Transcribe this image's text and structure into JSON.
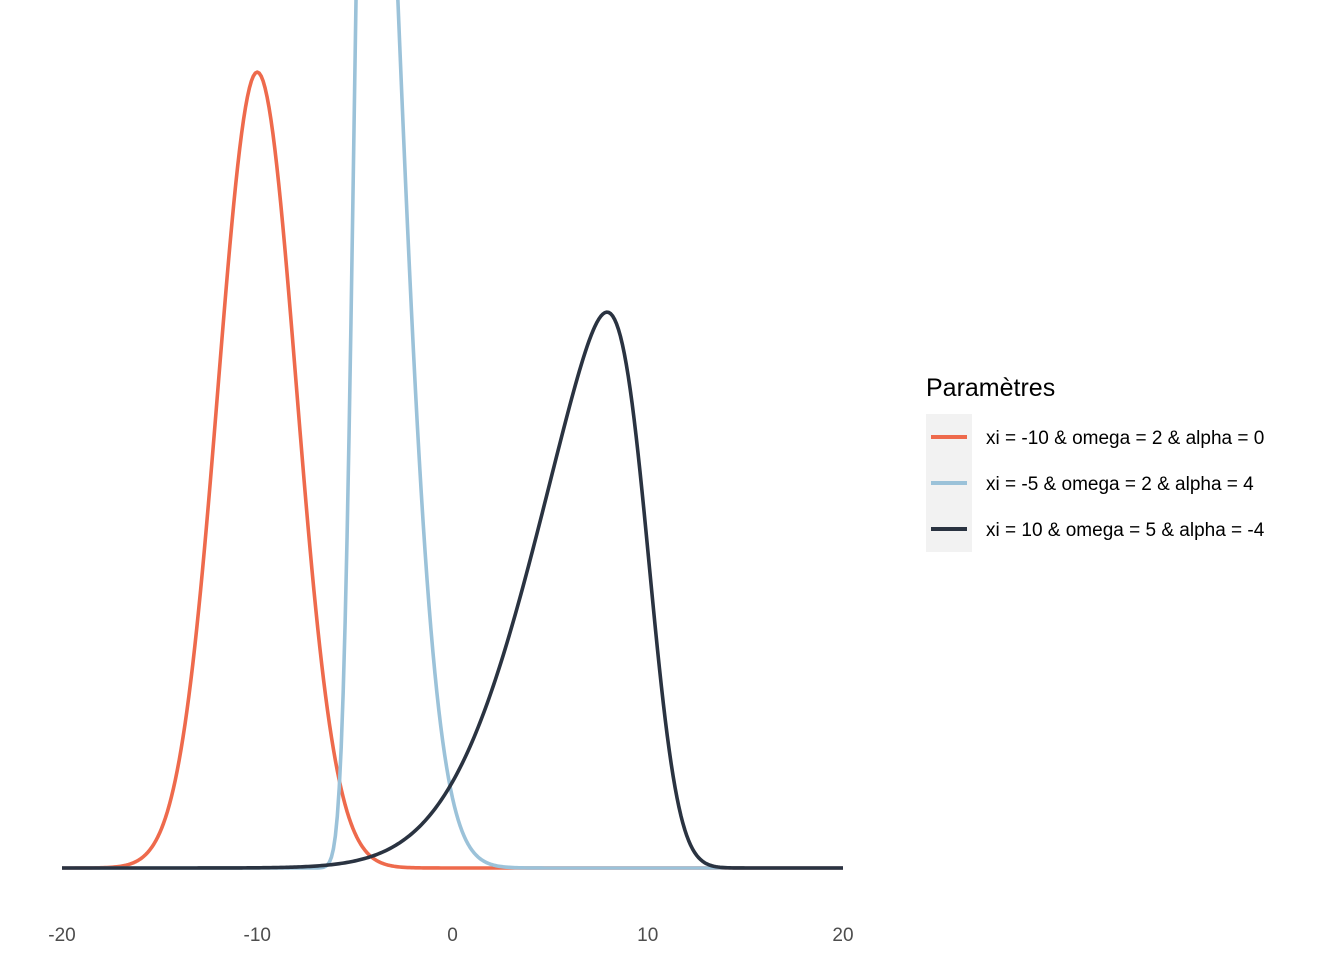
{
  "chart_data": {
    "type": "line",
    "title": "",
    "xlabel": "",
    "ylabel": "",
    "xlim": [
      -20,
      20
    ],
    "xticks": [
      -20,
      -10,
      0,
      10,
      20
    ],
    "grid": false,
    "legend": {
      "title": "Paramètres",
      "position": "right"
    },
    "series": [
      {
        "name": "xi = -10 & omega = 2 & alpha = 0",
        "color": "#ee6a4c",
        "xi": -10,
        "omega": 2,
        "alpha": 0
      },
      {
        "name": "xi = -5 & omega = 2 & alpha = 4",
        "color": "#9bc2d9",
        "xi": -5,
        "omega": 2,
        "alpha": 4
      },
      {
        "name": "xi = 10 & omega = 5 & alpha = -4",
        "color": "#2a3341",
        "xi": 10,
        "omega": 5,
        "alpha": -4
      }
    ]
  }
}
